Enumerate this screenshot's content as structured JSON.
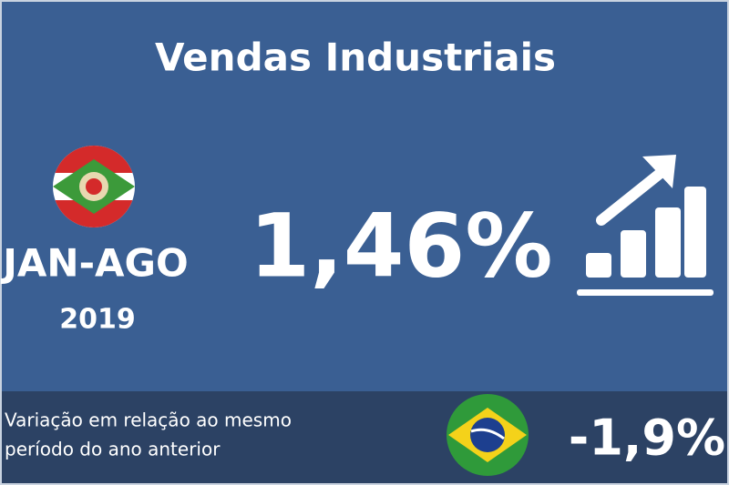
{
  "title": "Vendas Industriais",
  "period": "JAN-AGO",
  "year": "2019",
  "main_value": "1,46%",
  "footer": {
    "text_lines": [
      "Variação em relação ao mesmo",
      "período do ano anterior"
    ],
    "value": "-1,9%"
  }
}
